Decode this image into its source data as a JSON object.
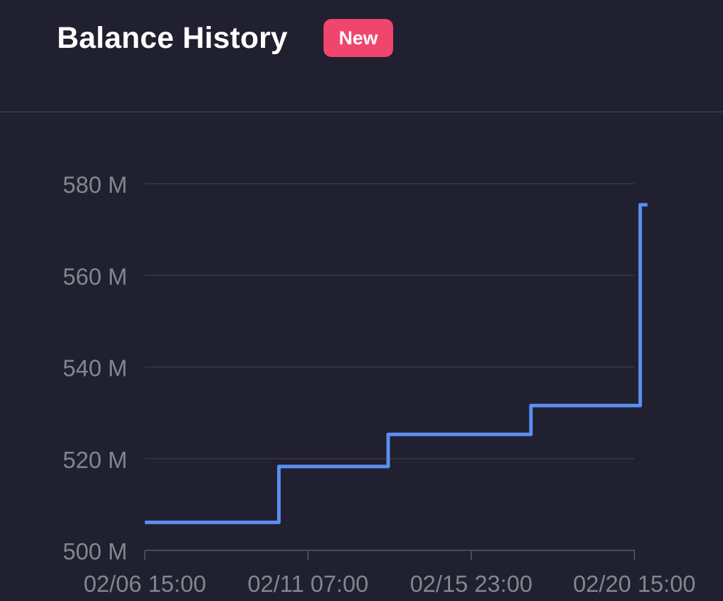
{
  "header": {
    "title": "Balance History",
    "badge": "New"
  },
  "colors": {
    "background": "#202030",
    "line": "#5b8ff2",
    "badge": "#f0466e",
    "grid": "#33333f",
    "tick_text": "#85858f"
  },
  "chart_data": {
    "type": "line",
    "step": true,
    "title": "",
    "xlabel": "",
    "ylabel": "",
    "ylim": [
      500,
      580
    ],
    "y_ticks": [
      {
        "value": 580,
        "label": "580 M"
      },
      {
        "value": 560,
        "label": "560 M"
      },
      {
        "value": 540,
        "label": "540 M"
      },
      {
        "value": 520,
        "label": "520 M"
      },
      {
        "value": 500,
        "label": "500 M"
      }
    ],
    "x_range": [
      "2024-02-06T15:00",
      "2024-02-21T00:00"
    ],
    "x_ticks": [
      {
        "value": "2024-02-06T15:00",
        "label": "02/06 15:00"
      },
      {
        "value": "2024-02-11T07:00",
        "label": "02/11 07:00"
      },
      {
        "value": "2024-02-15T23:00",
        "label": "02/15 23:00"
      },
      {
        "value": "2024-02-20T15:00",
        "label": "02/20 15:00"
      }
    ],
    "grid": true,
    "series": [
      {
        "points": [
          {
            "x": "2024-02-06T15:00",
            "y": 506.1
          },
          {
            "x": "2024-02-10T11:00",
            "y": 518.3
          },
          {
            "x": "2024-02-13T14:00",
            "y": 525.3
          },
          {
            "x": "2024-02-17T16:00",
            "y": 531.6
          },
          {
            "x": "2024-02-20T19:00",
            "y": 575.4
          },
          {
            "x": "2024-02-21T00:00",
            "y": 575.4
          }
        ]
      }
    ]
  }
}
